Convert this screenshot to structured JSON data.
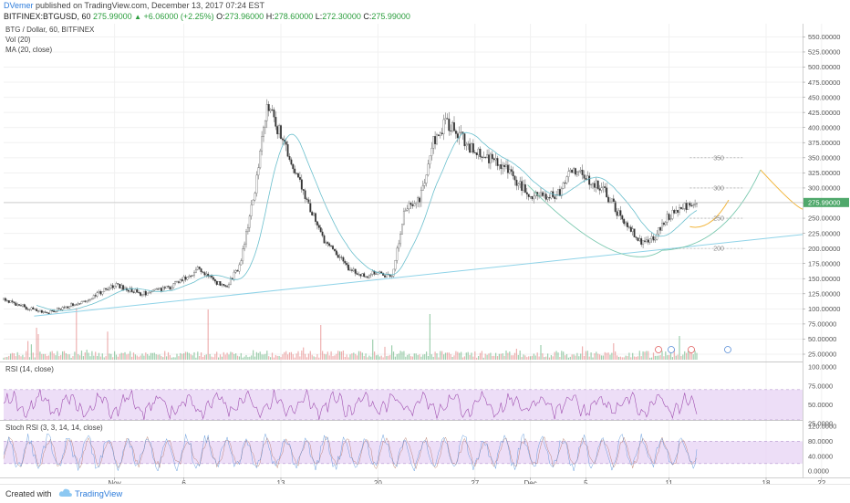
{
  "header": {
    "author": "DVemer",
    "published_text": "published on TradingView.com, December 13, 2017 07:24 EST",
    "symbol_line": "BITFINEX:BTGUSD, 60",
    "last": "275.99000",
    "change_arrow": "▲",
    "change": "+6.06000 (+2.25%)",
    "open_label": "O:",
    "open": "273.96000",
    "high_label": "H:",
    "high": "278.60000",
    "low_label": "L:",
    "low": "272.30000",
    "close_label": "C:",
    "close": "275.99000"
  },
  "legend": {
    "title": "BTG / Dollar, 60, BITFINEX",
    "vol": "Vol (20)",
    "ma": "MA (20, close)",
    "rsi": "RSI (14, close)",
    "stoch": "Stoch RSI (3, 3, 14, 14, close)"
  },
  "footer": {
    "created": "Created with",
    "brand": "TradingView"
  },
  "colors": {
    "up": "#4fa86b",
    "down": "#e07070",
    "ma": "#5ab8c8",
    "trend": "#8fd3e8",
    "arc": "#7cc9b0",
    "projection": "#f2b53a",
    "indicator": "#a050b0",
    "band": "#e8d6f5",
    "stoch_k": "#4a8ad6",
    "stoch_d": "#b07060"
  },
  "chart_data": [
    {
      "type": "line",
      "title": "BTG / Dollar, 60, BITFINEX",
      "ylim": [
        0,
        560
      ],
      "y_ticks": [
        "550.00000",
        "525.00000",
        "500.00000",
        "475.00000",
        "450.00000",
        "425.00000",
        "400.00000",
        "375.00000",
        "350.00000",
        "325.00000",
        "300.00000",
        "275.00000",
        "250.00000",
        "225.00000",
        "200.00000",
        "175.00000",
        "150.00000",
        "125.00000",
        "100.00000",
        "75.00000",
        "50.00000",
        "25.00000"
      ],
      "x_ticks": [
        "Nov",
        "6",
        "13",
        "20",
        "27",
        "Dec",
        "5",
        "11",
        "18",
        "22"
      ],
      "price_series": {
        "x": [
          "Oct 24",
          "Oct 27",
          "Oct 30",
          "Nov 1",
          "Nov 3",
          "Nov 5",
          "Nov 7",
          "Nov 8",
          "Nov 9",
          "Nov 10",
          "Nov 11",
          "Nov 12",
          "Nov 14",
          "Nov 16",
          "Nov 18",
          "Nov 19",
          "Nov 20",
          "Nov 21",
          "Nov 22",
          "Nov 23",
          "Nov 24",
          "Nov 25",
          "Nov 27",
          "Nov 29",
          "Dec 1",
          "Dec 3",
          "Dec 4",
          "Dec 6",
          "Dec 8",
          "Dec 9",
          "Dec 10",
          "Dec 11",
          "Dec 12",
          "Dec 13"
        ],
        "close": [
          115,
          92,
          115,
          140,
          125,
          135,
          165,
          150,
          135,
          170,
          280,
          440,
          330,
          215,
          165,
          155,
          160,
          150,
          270,
          280,
          375,
          410,
          360,
          340,
          285,
          290,
          330,
          305,
          235,
          210,
          220,
          255,
          270,
          276
        ]
      },
      "annotations": [
        "350",
        "300",
        "250",
        "200"
      ],
      "last_price": 275.99
    },
    {
      "type": "line",
      "title": "RSI (14, close)",
      "ylim": [
        25,
        100
      ],
      "y_ticks": [
        "100.0000",
        "75.0000",
        "50.0000",
        "25.0000"
      ],
      "band": [
        30,
        70
      ]
    },
    {
      "type": "line",
      "title": "Stoch RSI (3, 3, 14, 14, close)",
      "ylim": [
        -5,
        120
      ],
      "y_ticks": [
        "120.0000",
        "80.0000",
        "40.0000",
        "0.0000"
      ],
      "band": [
        20,
        80
      ]
    }
  ]
}
